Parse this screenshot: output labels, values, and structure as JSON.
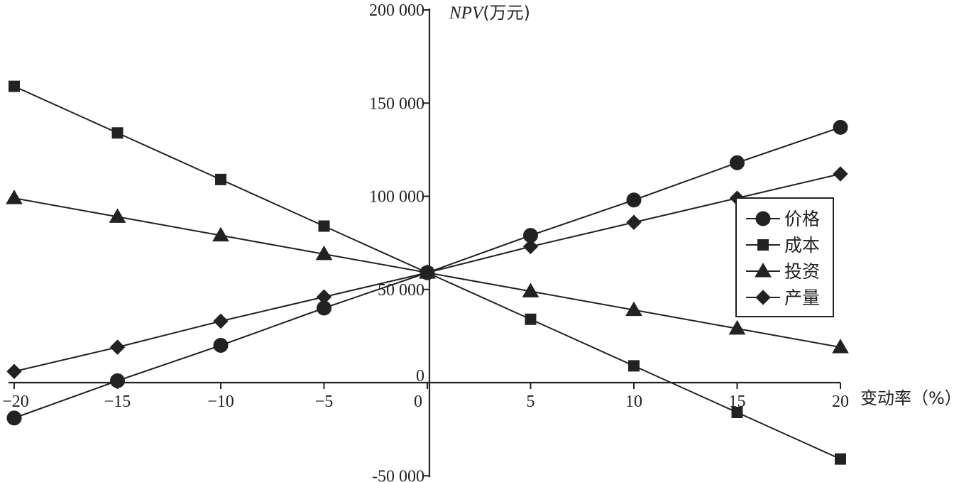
{
  "chart_data": {
    "type": "line",
    "title": "",
    "xlabel": "变动率（%）",
    "ylabel_prefix": "NPV",
    "ylabel_suffix": "(万元)",
    "x": [
      -20,
      -15,
      -10,
      -5,
      0,
      5,
      10,
      15,
      20
    ],
    "x_tick_labels": [
      "−20",
      "−15",
      "−10",
      "−5",
      "0",
      "5",
      "10",
      "15",
      "20"
    ],
    "y_ticks": [
      -50000,
      0,
      50000,
      100000,
      150000,
      200000
    ],
    "y_tick_labels": [
      "-50 000",
      "0",
      "50 000",
      "100 000",
      "150 000",
      "200 000"
    ],
    "xlim": [
      -20,
      20
    ],
    "ylim": [
      -50000,
      200000
    ],
    "grid": false,
    "legend_position": "right",
    "series": [
      {
        "name": "价格",
        "marker": "circle",
        "values": [
          -19000,
          1000,
          20000,
          40000,
          59000,
          79000,
          98000,
          118000,
          137000
        ]
      },
      {
        "name": "成本",
        "marker": "square",
        "values": [
          159000,
          134000,
          109000,
          84000,
          59000,
          34000,
          9000,
          -16000,
          -41000
        ]
      },
      {
        "name": "投资",
        "marker": "triangle",
        "values": [
          99000,
          89000,
          79000,
          69000,
          59000,
          49000,
          39000,
          29000,
          19000
        ]
      },
      {
        "name": "产量",
        "marker": "diamond",
        "values": [
          6000,
          19000,
          33000,
          46000,
          59000,
          73000,
          86000,
          99000,
          112000
        ]
      }
    ]
  }
}
